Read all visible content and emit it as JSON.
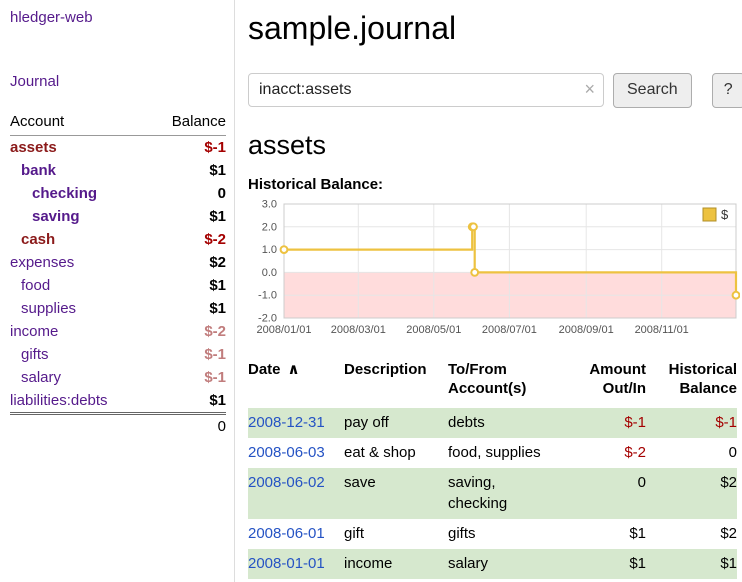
{
  "colors": {
    "link_purple": "#551a8b",
    "date_link_blue": "#2553c4",
    "negative_strong": "#a40000",
    "negative_muted": "#c17d7d",
    "account_negative_name": "#8b1a1a",
    "row_shade_green": "#d6e8ce",
    "chart_line_yellow": "#edc240",
    "chart_negative_pink": "#ffdcdc",
    "chart_grid": "#e6e6e6",
    "chart_border": "#cccccc"
  },
  "sidebar": {
    "app_title": "hledger-web",
    "journal_label": "Journal",
    "accounts": {
      "col_account": "Account",
      "col_balance": "Balance",
      "rows": [
        {
          "name": "assets",
          "depth": 0,
          "bold": true,
          "name_color": "negative",
          "balance": "$-1",
          "balance_color": "strong"
        },
        {
          "name": "bank",
          "depth": 1,
          "bold": true,
          "balance": "$1"
        },
        {
          "name": "checking",
          "depth": 2,
          "bold": true,
          "balance": "0"
        },
        {
          "name": "saving",
          "depth": 2,
          "bold": true,
          "balance": "$1"
        },
        {
          "name": "cash",
          "depth": 1,
          "bold": true,
          "name_color": "negative",
          "balance": "$-2",
          "balance_color": "strong"
        },
        {
          "name": "expenses",
          "depth": 0,
          "balance": "$2"
        },
        {
          "name": "food",
          "depth": 1,
          "balance": "$1"
        },
        {
          "name": "supplies",
          "depth": 1,
          "balance": "$1"
        },
        {
          "name": "income",
          "depth": 0,
          "balance": "$-2",
          "balance_color": "muted"
        },
        {
          "name": "gifts",
          "depth": 1,
          "balance": "$-1",
          "balance_color": "muted"
        },
        {
          "name": "salary",
          "depth": 1,
          "balance": "$-1",
          "balance_color": "muted"
        },
        {
          "name": "liabilities:debts",
          "depth": 0,
          "balance": "$1"
        }
      ],
      "total": "0"
    }
  },
  "main": {
    "title": "sample.journal",
    "account_heading": "assets",
    "chart_label": "Historical Balance:"
  },
  "search": {
    "value": "inacct:assets",
    "clear_icon": "×",
    "button_label": "Search",
    "help_label": "?"
  },
  "chart_data": {
    "type": "line",
    "title": "Historical Balance:",
    "legend_label": "$",
    "legend_position": "top-right",
    "step": true,
    "grid": true,
    "series": [
      {
        "name": "$",
        "points": [
          [
            "2008-01-01",
            1
          ],
          [
            "2008-06-01",
            2
          ],
          [
            "2008-06-02",
            2
          ],
          [
            "2008-06-03",
            0
          ],
          [
            "2008-12-31",
            -1
          ]
        ]
      }
    ],
    "point_days": [
      0,
      152,
      153,
      154,
      365
    ],
    "x_ticks": [
      "2008/01/01",
      "2008/03/01",
      "2008/05/01",
      "2008/07/01",
      "2008/09/01",
      "2008/11/01"
    ],
    "x_tick_days": [
      0,
      60,
      121,
      182,
      244,
      305
    ],
    "xlim_days": [
      0,
      365
    ],
    "y_ticks": [
      3,
      2,
      1,
      0,
      -1,
      -2
    ],
    "ylim": [
      -2,
      3
    ]
  },
  "register": {
    "headers": [
      {
        "lines": [
          "Date"
        ],
        "sort_indicator": "∧",
        "align": "left"
      },
      {
        "lines": [
          "Description"
        ],
        "align": "left"
      },
      {
        "lines": [
          "To/From",
          "Account(s)"
        ],
        "align": "left"
      },
      {
        "lines": [
          "Amount",
          "Out/In"
        ],
        "align": "right"
      },
      {
        "lines": [
          "Historical",
          "Balance"
        ],
        "align": "right"
      }
    ],
    "rows": [
      {
        "date": "2008-12-31",
        "description": "pay off",
        "accounts_lines": [
          "debts"
        ],
        "amount": "$-1",
        "amount_negative": true,
        "balance": "$-1",
        "balance_negative": true,
        "shaded": true
      },
      {
        "date": "2008-06-03",
        "description": "eat & shop",
        "accounts_lines": [
          "food, supplies"
        ],
        "amount": "$-2",
        "amount_negative": true,
        "balance": "0",
        "shaded": false
      },
      {
        "date": "2008-06-02",
        "description": "save",
        "accounts_lines": [
          "saving,",
          "checking"
        ],
        "amount": "0",
        "balance": "$2",
        "shaded": true
      },
      {
        "date": "2008-06-01",
        "description": "gift",
        "accounts_lines": [
          "gifts"
        ],
        "amount": "$1",
        "balance": "$2",
        "shaded": false
      },
      {
        "date": "2008-01-01",
        "description": "income",
        "accounts_lines": [
          "salary"
        ],
        "amount": "$1",
        "balance": "$1",
        "shaded": true
      }
    ]
  }
}
